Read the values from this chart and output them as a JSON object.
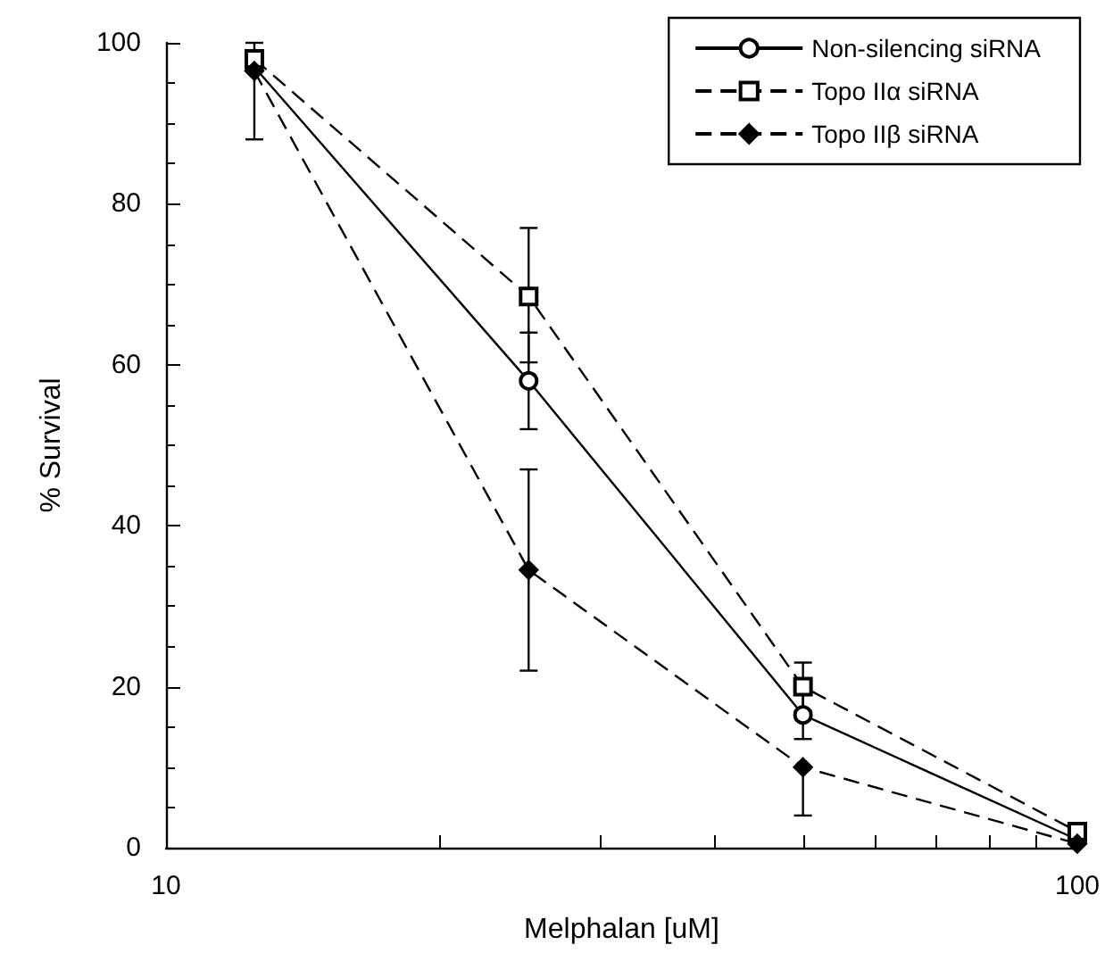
{
  "chart_data": {
    "type": "line",
    "xlabel": "Melphalan [uM]",
    "ylabel": "% Survival",
    "log": "x",
    "x": [
      12.5,
      25,
      50,
      100
    ],
    "series": [
      {
        "name": "Non-silencing siRNA",
        "color": "#000000",
        "marker": "circle",
        "line_style": "solid",
        "values": [
          97,
          58,
          16.5,
          1
        ],
        "errors": [
          null,
          [
            52,
            64
          ],
          [
            13.5,
            19.5
          ],
          null
        ]
      },
      {
        "name": "Topo IIα siRNA",
        "color": "#000000",
        "marker": "square",
        "line_style": "dashed",
        "values": [
          98,
          68.5,
          20,
          2
        ],
        "errors": [
          null,
          [
            60.3,
            77
          ],
          [
            17,
            23
          ],
          null
        ]
      },
      {
        "name": "Topo IIβ siRNA",
        "color": "#000000",
        "marker": "diamond",
        "line_style": "dashed",
        "values": [
          96.5,
          34.5,
          10,
          0.5
        ],
        "errors": [
          [
            88,
            100
          ],
          [
            22,
            47
          ],
          [
            4,
            10
          ],
          null
        ]
      }
    ],
    "xlim": [
      10,
      100
    ],
    "xticks": [
      10,
      {
        "value": 20,
        "label": null
      },
      {
        "value": 30,
        "label": null
      },
      {
        "value": 40,
        "label": null
      },
      {
        "value": 50,
        "label": null
      },
      {
        "value": 60,
        "label": null
      },
      {
        "value": 70,
        "label": null
      },
      {
        "value": 80,
        "label": null
      },
      {
        "value": 90,
        "label": null
      },
      100
    ],
    "ylim": [
      0,
      100
    ],
    "yticks": [
      0,
      20,
      40,
      60,
      80,
      100
    ],
    "grid": false,
    "legend": "top right"
  }
}
